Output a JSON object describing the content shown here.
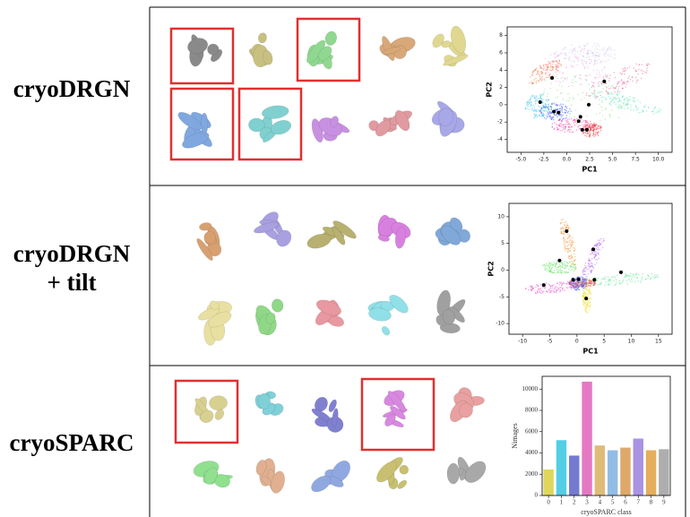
{
  "rows": [
    {
      "label": [
        "cryoDRGN"
      ]
    },
    {
      "label": [
        "cryoDRGN",
        "+ tilt"
      ]
    },
    {
      "label": [
        "cryoSPARC"
      ]
    }
  ],
  "chart_data": [
    {
      "type": "scatter",
      "xlabel": "PC1",
      "ylabel": "PC2",
      "x": [
        -1.6,
        -2.9,
        -1.4,
        -0.9,
        2.4,
        4.1,
        1.5,
        1.3,
        1.7,
        2.2
      ],
      "values": [
        3.1,
        0.3,
        -0.8,
        -0.9,
        0,
        2.7,
        -1.4,
        -1.9,
        -2.9,
        -2.9
      ],
      "color": "#000000",
      "xlim": [
        -6.5,
        11.5
      ],
      "ylim": [
        -5.5,
        9
      ],
      "xticks": [
        {
          "value": -5,
          "label": "-5.0"
        },
        {
          "value": -2.5,
          "label": "-2.5"
        },
        {
          "value": 0,
          "label": "0.0"
        },
        {
          "value": 2.5,
          "label": "2.5"
        },
        {
          "value": 5,
          "label": "5.0"
        },
        {
          "value": 7.5,
          "label": "7.5"
        },
        {
          "value": 10,
          "label": "10.0"
        }
      ],
      "yticks": [
        -4,
        -2,
        0,
        2,
        4,
        6,
        8
      ]
    },
    {
      "type": "scatter",
      "xlabel": "PC1",
      "ylabel": "PC2",
      "x": [
        -1.9,
        -3.2,
        3.0,
        -6.1,
        -0.7,
        0.3,
        3.2,
        8.1,
        1.7
      ],
      "values": [
        7.3,
        1.8,
        3.9,
        -2.8,
        -1.8,
        -1.7,
        -1.8,
        -0.4,
        -5.3
      ],
      "color": "#000000",
      "xlim": [
        -12.5,
        17.5
      ],
      "ylim": [
        -12,
        12.5
      ],
      "xticks": [
        -10,
        -5,
        0,
        5,
        10,
        15
      ],
      "yticks": [
        -10,
        -5,
        0,
        5,
        10
      ]
    },
    {
      "type": "bar",
      "xlabel": "cryoSPARC class",
      "ylabel": "Nimages",
      "categories": [
        "0",
        "1",
        "2",
        "3",
        "4",
        "5",
        "6",
        "7",
        "8",
        "9"
      ],
      "values": [
        2450,
        5200,
        3750,
        10700,
        4700,
        4250,
        4500,
        5350,
        4250,
        4350
      ],
      "colors": [
        "#d8d040",
        "#35c6e0",
        "#5a63c8",
        "#e060b8",
        "#d8b060",
        "#80b0e0",
        "#d89a50",
        "#9a80e0",
        "#e0a040",
        "#a0a0a0"
      ],
      "ylim": [
        0,
        11200
      ],
      "yticks": [
        0,
        2000,
        4000,
        6000,
        8000,
        10000
      ]
    }
  ]
}
